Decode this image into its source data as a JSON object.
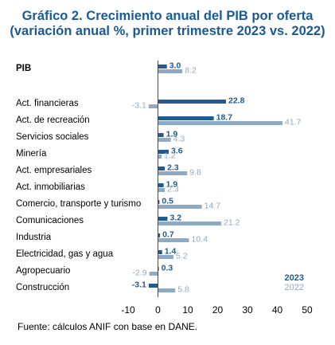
{
  "title_line1": "Gráfico 2. Crecimiento anual del PIB por oferta",
  "title_line2": "(variación anual %, primer trimestre 2023 vs. 2022)",
  "source": "Fuente: cálculos ANIF con base en DANE.",
  "colors": {
    "2023": "#1f5a94",
    "2022": "#8faac4",
    "axis": "#4a4a4a"
  },
  "chart_data": {
    "type": "bar",
    "orientation": "horizontal",
    "categories": [
      "PIB",
      "Act. financieras",
      "Act. de recreación",
      "Servicios sociales",
      "Minería",
      "Act. empresariales",
      "Act. inmobiliarias",
      "Comercio, transporte y turismo",
      "Comunicaciones",
      "Industria",
      "Electricidad, gas y agua",
      "Agropecuario",
      "Construcción"
    ],
    "series": [
      {
        "name": "2023",
        "values": [
          3.0,
          22.8,
          18.7,
          1.9,
          3.6,
          2.3,
          1.9,
          0.5,
          3.2,
          0.7,
          1.4,
          0.3,
          -3.1
        ],
        "labels": [
          "3.0",
          "22.8",
          "18.7",
          "1.9",
          "3.6",
          "2.3",
          "1.9",
          "0.5",
          "3.2",
          "0.7",
          "1.4",
          "0.3",
          "-3.1"
        ]
      },
      {
        "name": "2022",
        "values": [
          8.2,
          -3.1,
          41.7,
          4.3,
          1.2,
          9.8,
          2.3,
          14.7,
          21.2,
          10.4,
          5.2,
          -2.9,
          5.8
        ],
        "labels": [
          "8.2",
          "-3.1",
          "41.7",
          "4.3",
          "1.2",
          "9.8",
          "2.3",
          "14.7",
          "21.2",
          "10.4",
          "5.2",
          "-2.9",
          "5.8"
        ]
      }
    ],
    "xlim": [
      -10,
      50
    ],
    "xticks": [
      "-10",
      "0",
      "10",
      "20",
      "30",
      "40",
      "50"
    ],
    "legend": [
      "2023",
      "2022"
    ],
    "legend_position": "bottom-right"
  }
}
